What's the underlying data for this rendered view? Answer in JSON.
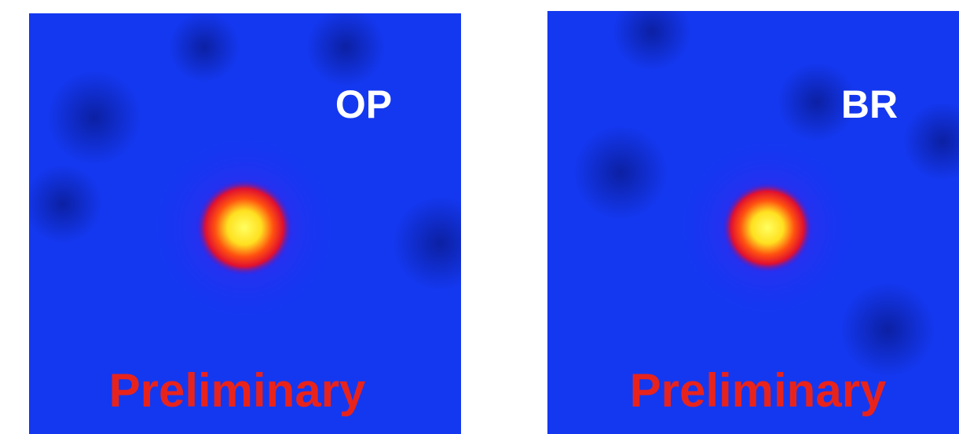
{
  "panels": [
    {
      "label": "OP",
      "watermark": "Preliminary"
    },
    {
      "label": "BR",
      "watermark": "Preliminary"
    }
  ]
}
